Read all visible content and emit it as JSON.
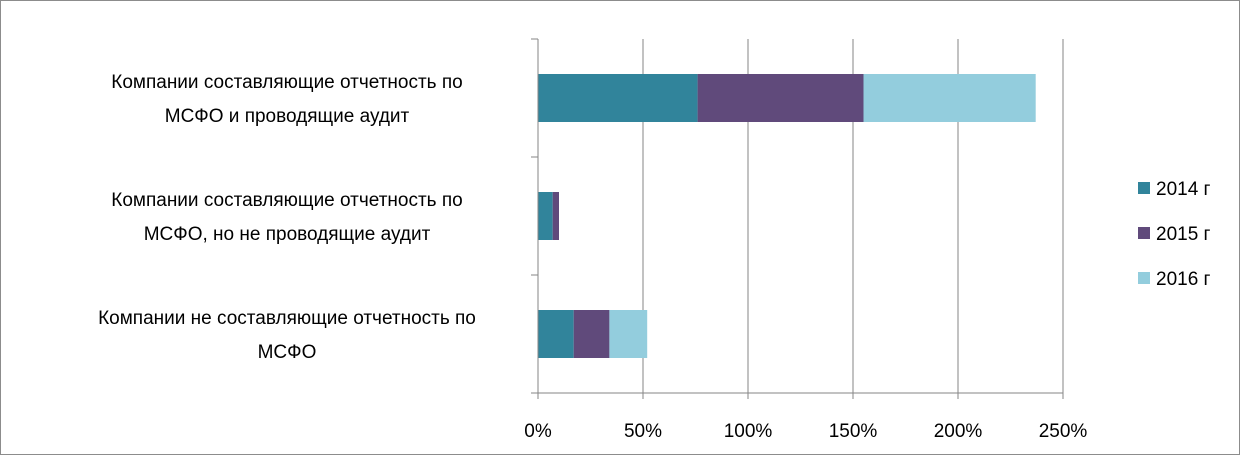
{
  "chart_data": {
    "type": "bar",
    "orientation": "horizontal",
    "stacked": true,
    "categories": [
      "Компании составляющие отчетность по МСФО и проводящие аудит",
      "Компании составляющие отчетность по МСФО, но не проводящие аудит",
      "Компании не составляющие отчетность по МСФО"
    ],
    "category_lines": [
      [
        "Компании составляющие отчетность по",
        "МСФО и проводящие аудит"
      ],
      [
        "Компании составляющие отчетность по",
        "МСФО, но не проводящие аудит"
      ],
      [
        "Компании не составляющие отчетность по",
        "МСФО"
      ]
    ],
    "series": [
      {
        "name": "2014 г",
        "color": "#31849b",
        "values": [
          76,
          7,
          17
        ]
      },
      {
        "name": "2015 г",
        "color": "#604a7b",
        "values": [
          79,
          3,
          17
        ]
      },
      {
        "name": "2016 г",
        "color": "#93cddd",
        "values": [
          82,
          0,
          18
        ]
      }
    ],
    "xlim": [
      0,
      250
    ],
    "xticks": [
      "0%",
      "50%",
      "100%",
      "150%",
      "200%",
      "250%"
    ],
    "grid": "vertical",
    "legend": "right",
    "title": "",
    "xlabel": "",
    "ylabel": ""
  }
}
